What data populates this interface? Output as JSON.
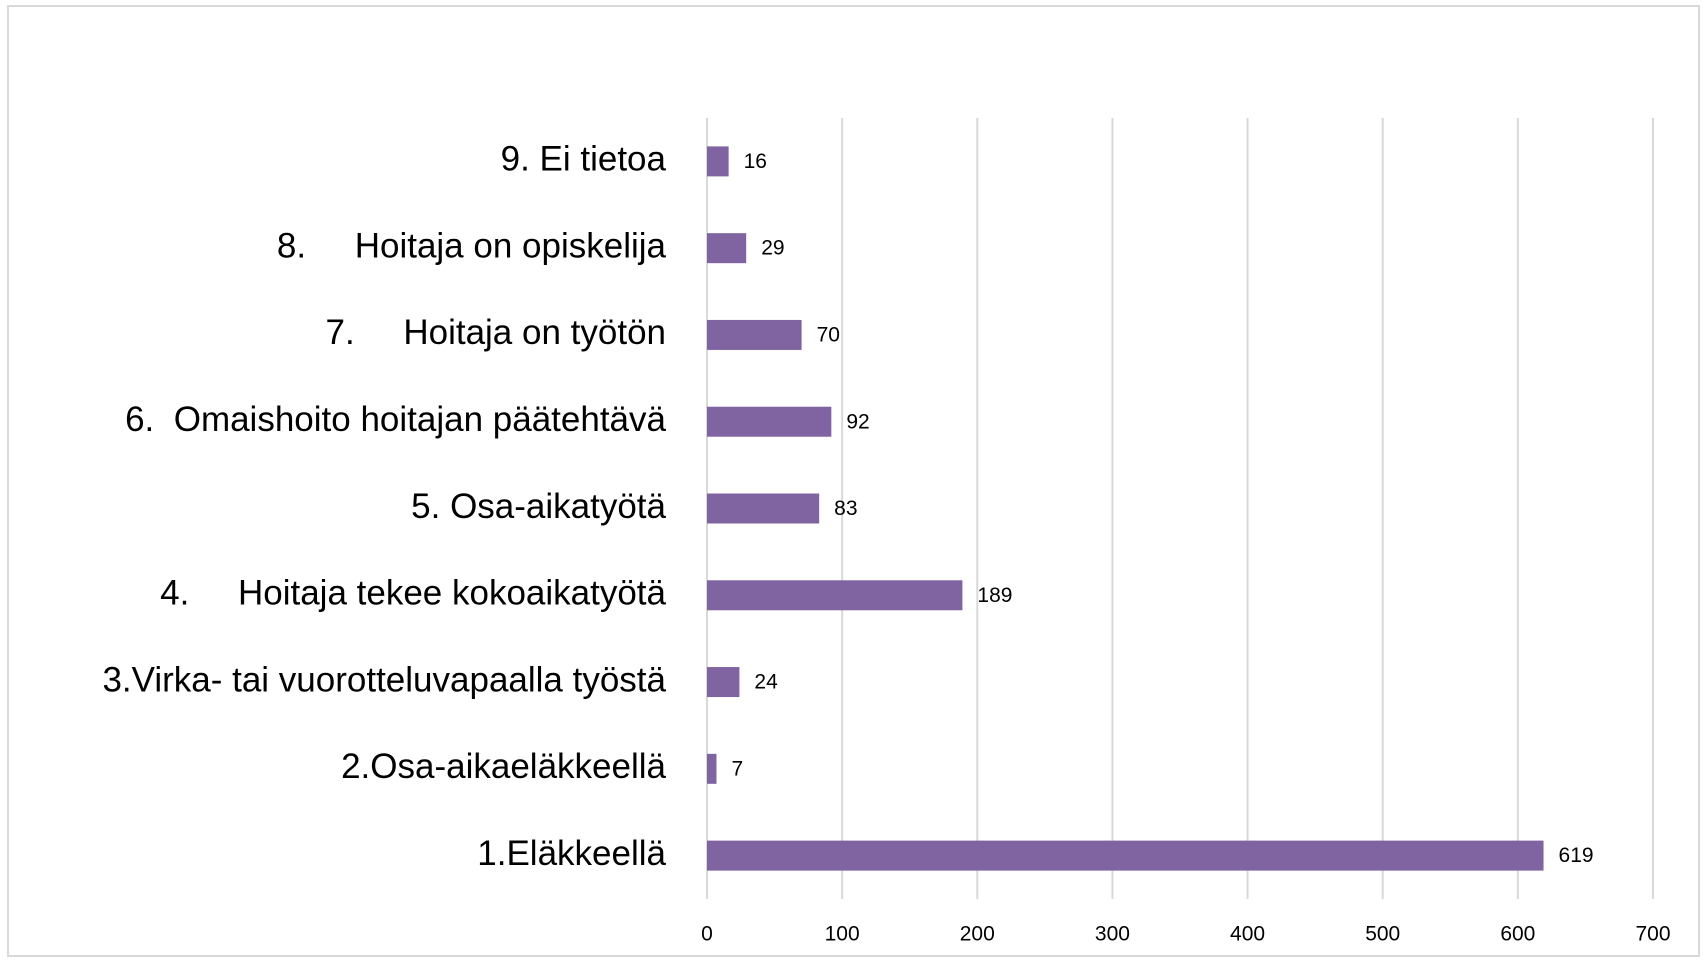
{
  "chart_data": {
    "type": "barh",
    "categories": [
      "1.Eläkkeellä",
      "2.Osa-aikaeläkkeellä",
      "3.Virka- tai vuorotteluvapaalla työstä",
      "4.     Hoitaja tekee kokoaikatyötä",
      "5. Osa-aikatyötä",
      "6.  Omaishoito hoitajan päätehtävä",
      "7.     Hoitaja on työtön",
      "8.     Hoitaja on opiskelija",
      "9. Ei tietoa"
    ],
    "values": [
      619,
      7,
      24,
      189,
      83,
      92,
      70,
      29,
      16
    ],
    "color": "#8064a2",
    "xlim": [
      0,
      700
    ],
    "xticks": [
      0,
      100,
      200,
      300,
      400,
      500,
      600,
      700
    ],
    "grid": true
  }
}
